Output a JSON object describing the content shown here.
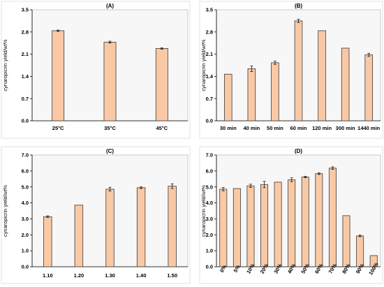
{
  "chart_data": [
    {
      "type": "bar",
      "title": "(A)",
      "ylabel": "cynaropicrin yield/wt%",
      "ylim": [
        0,
        3.5
      ],
      "yticks": [
        "0.0",
        "0.7",
        "1.4",
        "2.1",
        "2.8",
        "3.5"
      ],
      "categories": [
        "25°C",
        "35°C",
        "45°C"
      ],
      "values": [
        2.84,
        2.48,
        2.28
      ],
      "errors": [
        0.02,
        0.03,
        0.02
      ],
      "grid": false
    },
    {
      "type": "bar",
      "title": "(B)",
      "ylabel": "cynaropicrin yield/wt%",
      "ylim": [
        0,
        3.5
      ],
      "yticks": [
        "0.0",
        "0.7",
        "1.4",
        "2.1",
        "2.8",
        "3.5"
      ],
      "categories": [
        "30 min",
        "40 min",
        "50 min",
        "60 min",
        "120 min",
        "300 min",
        "1440 min"
      ],
      "values": [
        1.47,
        1.64,
        1.83,
        3.15,
        2.84,
        2.29,
        2.08
      ],
      "errors": [
        0.0,
        0.09,
        0.05,
        0.05,
        0.0,
        0.0,
        0.05
      ],
      "grid": false
    },
    {
      "type": "bar",
      "title": "(C)",
      "ylabel": "cynaropicrin yield/wt%",
      "ylim": [
        0,
        7.0
      ],
      "yticks": [
        "0.0",
        "1.0",
        "2.0",
        "3.0",
        "4.0",
        "5.0",
        "6.0",
        "7.0"
      ],
      "categories": [
        "1.10",
        "1.20",
        "1.30",
        "1.40",
        "1.50"
      ],
      "values": [
        3.14,
        3.86,
        4.86,
        4.95,
        5.05
      ],
      "errors": [
        0.05,
        0.0,
        0.12,
        0.05,
        0.15
      ],
      "grid": false
    },
    {
      "type": "bar",
      "title": "(D)",
      "ylabel": "cynaropicrin yield/wt%",
      "ylim": [
        0,
        7.0
      ],
      "yticks": [
        "0.0",
        "1.0",
        "2.0",
        "3.0",
        "4.0",
        "5.0",
        "6.0",
        "7.0"
      ],
      "categories": [
        "0%",
        "5%",
        "10%",
        "20%",
        "30%",
        "40%",
        "50%",
        "60%",
        "70%",
        "80%",
        "90%",
        "100%"
      ],
      "values": [
        4.86,
        4.9,
        5.07,
        5.15,
        5.3,
        5.45,
        5.62,
        5.83,
        6.18,
        3.2,
        1.93,
        0.7
      ],
      "errors": [
        0.1,
        0.0,
        0.1,
        0.2,
        0.0,
        0.12,
        0.05,
        0.05,
        0.08,
        0.0,
        0.05,
        0.0
      ],
      "grid": false
    }
  ]
}
